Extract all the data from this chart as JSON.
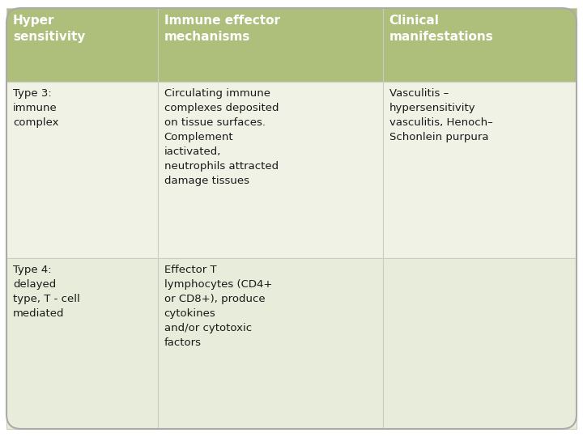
{
  "header_bg": "#adbf7b",
  "row1_bg": "#f0f2e6",
  "row2_bg": "#e8ecda",
  "border_color": "#c8cfc0",
  "text_color_header": "#ffffff",
  "text_color_body": "#1a1a1a",
  "outer_bg": "#ffffff",
  "headers": [
    "Hyper\nsensitivity",
    "Immune effector\nmechanisms",
    "Clinical\nmanifestations"
  ],
  "row1_col1": "Type 3:\nimmune\ncomplex",
  "row1_col2": "Circulating immune\ncomplexes deposited\non tissue surfaces.\nComplement\niactivated,\nneutrophils attracted\ndamage tissues",
  "row1_col3": "Vasculitis –\nhypersensitivity\nvasculitis, Henoch–\nSchonlein purpura",
  "row2_col1": "Type 4:\ndelayed\ntype, T - cell\nmediated",
  "row2_col2": "Effector T\nlymphocytes (CD4+\nor CD8+), produce\ncytokines\nand/or cytotoxic\nfactors",
  "row2_col3": "",
  "font_size_header": 11,
  "font_size_body": 9.5
}
